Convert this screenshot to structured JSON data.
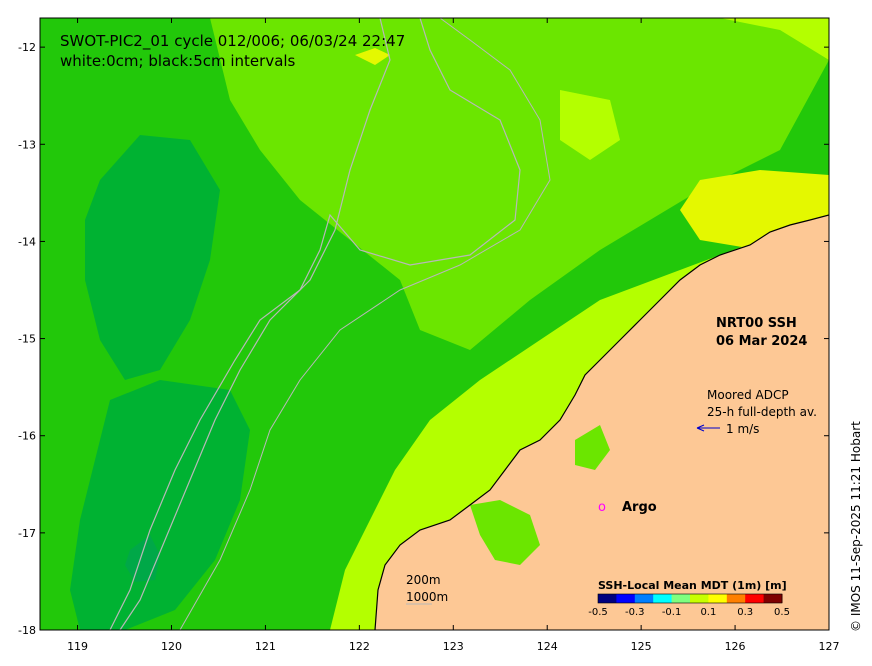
{
  "title": {
    "line1": "SWOT-PIC2_01 cycle 012/006; 06/03/24 22:47",
    "line2": "white:0cm; black:5cm intervals"
  },
  "nrt": {
    "line1": "NRT00 SSH",
    "line2": "06 Mar 2024"
  },
  "adcp": {
    "line1": "Moored ADCP",
    "line2": "25-h full-depth av.",
    "arrow_label": "1 m/s",
    "arrow_color": "#0000cc"
  },
  "argo": {
    "marker": "o",
    "label": "Argo",
    "color": "#ff00ff"
  },
  "isobaths": {
    "line1": "200m",
    "line2": "1000m"
  },
  "colorbar": {
    "title": "SSH-Local Mean MDT (1m) [m]",
    "ticks": [
      "-0.5",
      "-0.3",
      "-0.1",
      "0.1",
      "0.3",
      "0.5"
    ],
    "colors": [
      "#00007f",
      "#0000ff",
      "#007fff",
      "#00ffff",
      "#7fff7f",
      "#c8ff00",
      "#ffff00",
      "#ff7f00",
      "#ff0000",
      "#7f0000"
    ]
  },
  "credit": "© IMOS 11-Sep-2025 11:21 Hobart",
  "axes": {
    "x_ticks": [
      "119",
      "120",
      "121",
      "122",
      "123",
      "124",
      "125",
      "126",
      "127"
    ],
    "y_ticks": [
      "-12",
      "-13",
      "-14",
      "-15",
      "-16",
      "-17",
      "-18"
    ],
    "x_range": [
      118.6,
      127
    ],
    "y_range": [
      -18,
      -11.7
    ]
  },
  "colors": {
    "land": "#fdc895",
    "dark_green": "#00b232",
    "green": "#22c80a",
    "light_green": "#6be600",
    "yellow_green": "#b4ff00",
    "yellow": "#e4f800",
    "isobath": "#b8b8b8"
  }
}
